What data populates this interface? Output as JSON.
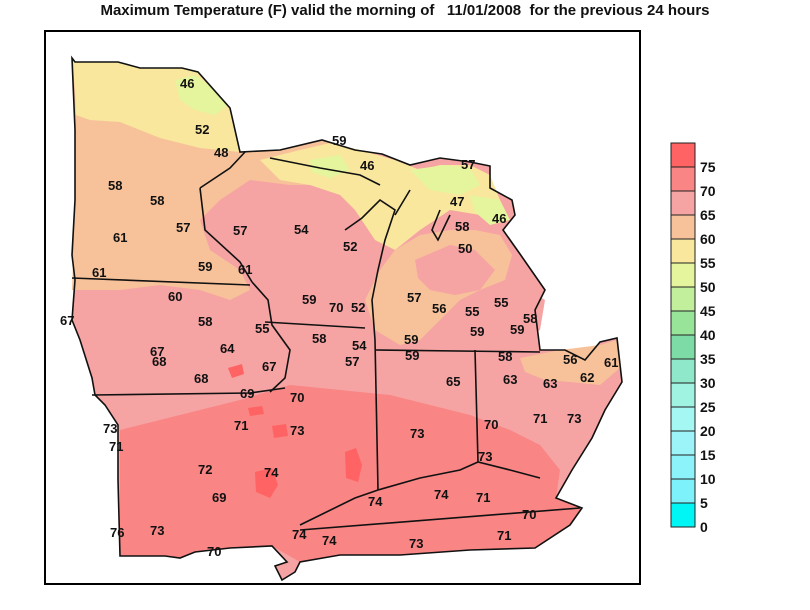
{
  "title": "Maximum Temperature (F) valid the morning of   11/01/2008  for the previous 24 hours",
  "legend": {
    "bins": [
      {
        "label": "75",
        "color": "#ff6363"
      },
      {
        "label": "70",
        "color": "#f98585"
      },
      {
        "label": "65",
        "color": "#f5a3a3"
      },
      {
        "label": "60",
        "color": "#f7c29a"
      },
      {
        "label": "55",
        "color": "#f8e79d"
      },
      {
        "label": "50",
        "color": "#e5f59d"
      },
      {
        "label": "45",
        "color": "#c2ef9b"
      },
      {
        "label": "40",
        "color": "#98e59a"
      },
      {
        "label": "35",
        "color": "#7ddca6"
      },
      {
        "label": "30",
        "color": "#8ee8c9"
      },
      {
        "label": "25",
        "color": "#9ff3e0"
      },
      {
        "label": "20",
        "color": "#a4f7f2"
      },
      {
        "label": "15",
        "color": "#9df4f8"
      },
      {
        "label": "10",
        "color": "#8df3fa"
      },
      {
        "label": "5",
        "color": "#7ef2fb"
      },
      {
        "label": "0",
        "color": "#00f5f5"
      }
    ]
  },
  "stations": [
    {
      "v": "46"
    },
    {
      "v": "52"
    },
    {
      "v": "48"
    },
    {
      "v": "58"
    },
    {
      "v": "58"
    },
    {
      "v": "57"
    },
    {
      "v": "61"
    },
    {
      "v": "59"
    },
    {
      "v": "61"
    },
    {
      "v": "57"
    },
    {
      "v": "54"
    },
    {
      "v": "60"
    },
    {
      "v": "61"
    },
    {
      "v": "67"
    },
    {
      "v": "58"
    },
    {
      "v": "55"
    },
    {
      "v": "67"
    },
    {
      "v": "68"
    },
    {
      "v": "64"
    },
    {
      "v": "67"
    },
    {
      "v": "68"
    },
    {
      "v": "59"
    },
    {
      "v": "70"
    },
    {
      "v": "52"
    },
    {
      "v": "58"
    },
    {
      "v": "54"
    },
    {
      "v": "57"
    },
    {
      "v": "69"
    },
    {
      "v": "70"
    },
    {
      "v": "71"
    },
    {
      "v": "73"
    },
    {
      "v": "73"
    },
    {
      "v": "71"
    },
    {
      "v": "72"
    },
    {
      "v": "69"
    },
    {
      "v": "74"
    },
    {
      "v": "76"
    },
    {
      "v": "73"
    },
    {
      "v": "70"
    },
    {
      "v": "74"
    },
    {
      "v": "74"
    },
    {
      "v": "59"
    },
    {
      "v": "46"
    },
    {
      "v": "57"
    },
    {
      "v": "47"
    },
    {
      "v": "46"
    },
    {
      "v": "58"
    },
    {
      "v": "50"
    },
    {
      "v": "52"
    },
    {
      "v": "57"
    },
    {
      "v": "56"
    },
    {
      "v": "55"
    },
    {
      "v": "55"
    },
    {
      "v": "59"
    },
    {
      "v": "59"
    },
    {
      "v": "59"
    },
    {
      "v": "58"
    },
    {
      "v": "59"
    },
    {
      "v": "58"
    },
    {
      "v": "56"
    },
    {
      "v": "61"
    },
    {
      "v": "65"
    },
    {
      "v": "63"
    },
    {
      "v": "63"
    },
    {
      "v": "62"
    },
    {
      "v": "73"
    },
    {
      "v": "70"
    },
    {
      "v": "71"
    },
    {
      "v": "73"
    },
    {
      "v": "73"
    },
    {
      "v": "74"
    },
    {
      "v": "74"
    },
    {
      "v": "71"
    },
    {
      "v": "70"
    },
    {
      "v": "73"
    },
    {
      "v": "71"
    }
  ]
}
